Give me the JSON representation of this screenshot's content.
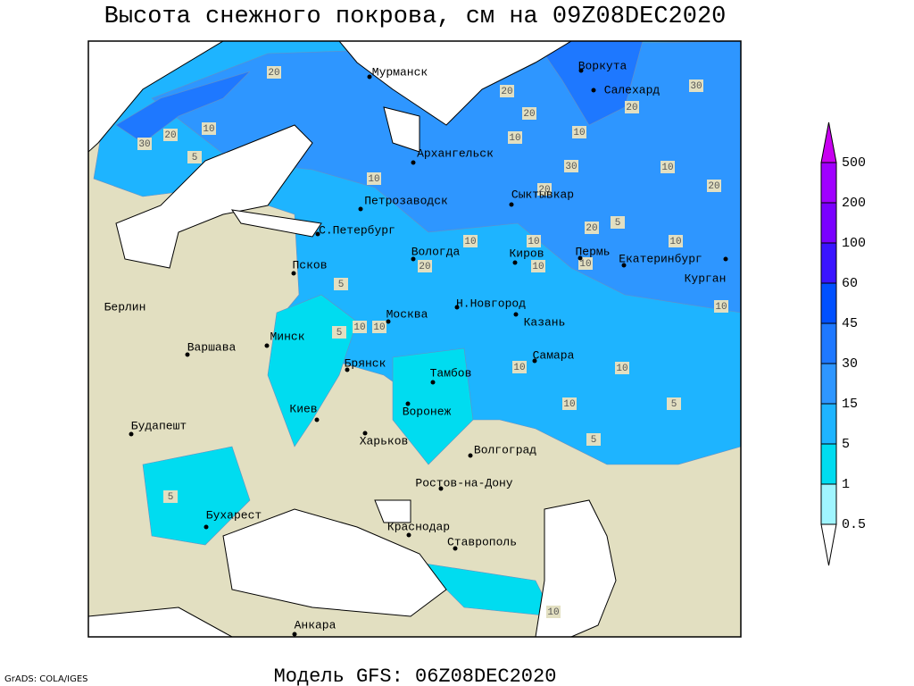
{
  "header": {
    "title": "Высота снежного покрова, см на 09Z08DEC2020"
  },
  "footer": {
    "model": "Модель GFS: 06Z08DEC2020",
    "credit": "GrADS: COLA/IGES"
  },
  "legend": {
    "levels": [
      0.5,
      1,
      5,
      15,
      30,
      45,
      60,
      100,
      200,
      500
    ],
    "colors": [
      "#ffffff",
      "#a0f5ff",
      "#00dcf0",
      "#1eb4ff",
      "#2e96ff",
      "#1e78ff",
      "#0050ff",
      "#3a14ff",
      "#7a00ff",
      "#a000ff",
      "#c800f0"
    ]
  },
  "cities": [
    "Мурманск",
    "Воркута",
    "Салехард",
    "Архангельск",
    "Сыктывкар",
    "Петрозаводск",
    "С.Петербург",
    "Вологда",
    "Киров",
    "Пермь",
    "Екатеринбург",
    "Курган",
    "Псков",
    "Берлин",
    "Н.Новгород",
    "Казань",
    "Москва",
    "Минск",
    "Варшава",
    "Самара",
    "Брянск",
    "Тамбов",
    "Киев",
    "Воронеж",
    "Будапешт",
    "Харьков",
    "Волгоград",
    "Ростов-на-Дону",
    "Бухарест",
    "Краснодар",
    "Ставрополь",
    "Анкара"
  ],
  "contour_labels": [
    20,
    20,
    10,
    10,
    30,
    20,
    30,
    10,
    20,
    20,
    20,
    5,
    10,
    10,
    10,
    10,
    10,
    20,
    10,
    5,
    10,
    10,
    10,
    10,
    10,
    5,
    5,
    5,
    20,
    10,
    20,
    30,
    5,
    10,
    5,
    10
  ]
}
